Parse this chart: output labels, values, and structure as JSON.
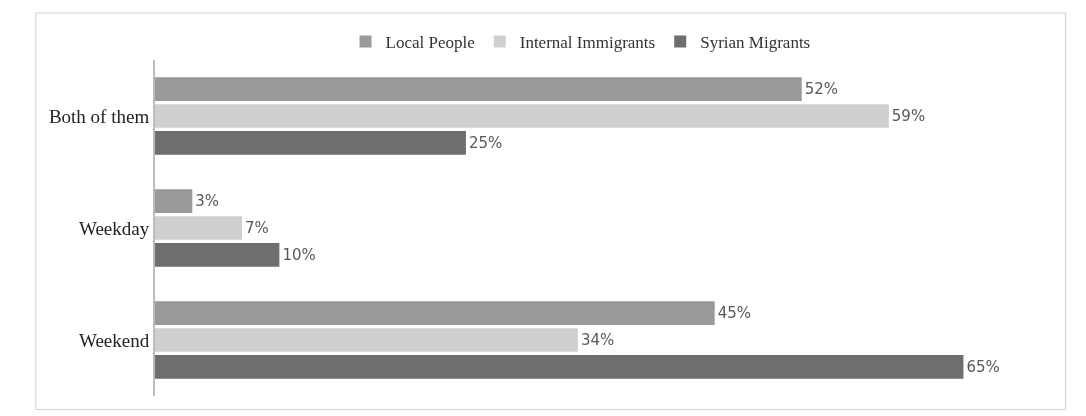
{
  "chart_data": {
    "type": "bar",
    "orientation": "horizontal",
    "categories": [
      "Both of them",
      "Weekday",
      "Weekend"
    ],
    "series": [
      {
        "name": "Local People",
        "color": "#9a9a9a",
        "values": [
          52,
          3,
          45
        ],
        "value_labels": [
          "52%",
          "3%",
          "45%"
        ]
      },
      {
        "name": "Internal Immigrants",
        "color": "#cfcfcf",
        "values": [
          59,
          7,
          34
        ],
        "value_labels": [
          "59%",
          "7%",
          "34%"
        ]
      },
      {
        "name": "Syrian Migrants",
        "color": "#6e6e6e",
        "values": [
          25,
          10,
          65
        ],
        "value_labels": [
          "25%",
          "10%",
          "65%"
        ]
      }
    ],
    "legend": "top"
  }
}
